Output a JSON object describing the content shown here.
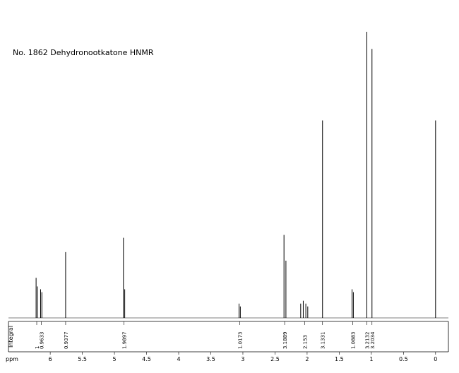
{
  "chart_data": {
    "type": "spectrum",
    "title": "No. 1862 Dehydronootkatone HNMR",
    "x_label": "ppm",
    "integral_label": "Integral",
    "xlim": [
      6.65,
      -0.2
    ],
    "xticks": [
      6.0,
      5.5,
      5.0,
      4.5,
      4.0,
      3.5,
      3.0,
      2.5,
      2.0,
      1.5,
      1.0,
      0.5,
      0.0
    ],
    "ylim": [
      0,
      100
    ],
    "color": "#000000",
    "x": [
      6.22,
      6.2,
      6.15,
      6.13,
      5.76,
      4.86,
      4.84,
      3.06,
      3.04,
      2.36,
      2.33,
      2.1,
      2.06,
      2.02,
      1.99,
      1.76,
      1.3,
      1.28,
      1.07,
      0.99,
      0.0
    ],
    "values": [
      14,
      11,
      10,
      9,
      23,
      28,
      10,
      5,
      4,
      29,
      20,
      5,
      6,
      5,
      4,
      69,
      10,
      9,
      100,
      94,
      69
    ],
    "integrals": {
      "x": [
        6.21,
        6.14,
        5.76,
        4.85,
        3.05,
        2.35,
        2.04,
        1.76,
        1.29,
        1.07,
        0.99
      ],
      "values": [
        1.0,
        0.9633,
        0.9377,
        1.9897,
        1.0173,
        3.1889,
        2.153,
        3.1331,
        1.0883,
        3.2132,
        3.2034
      ]
    }
  }
}
